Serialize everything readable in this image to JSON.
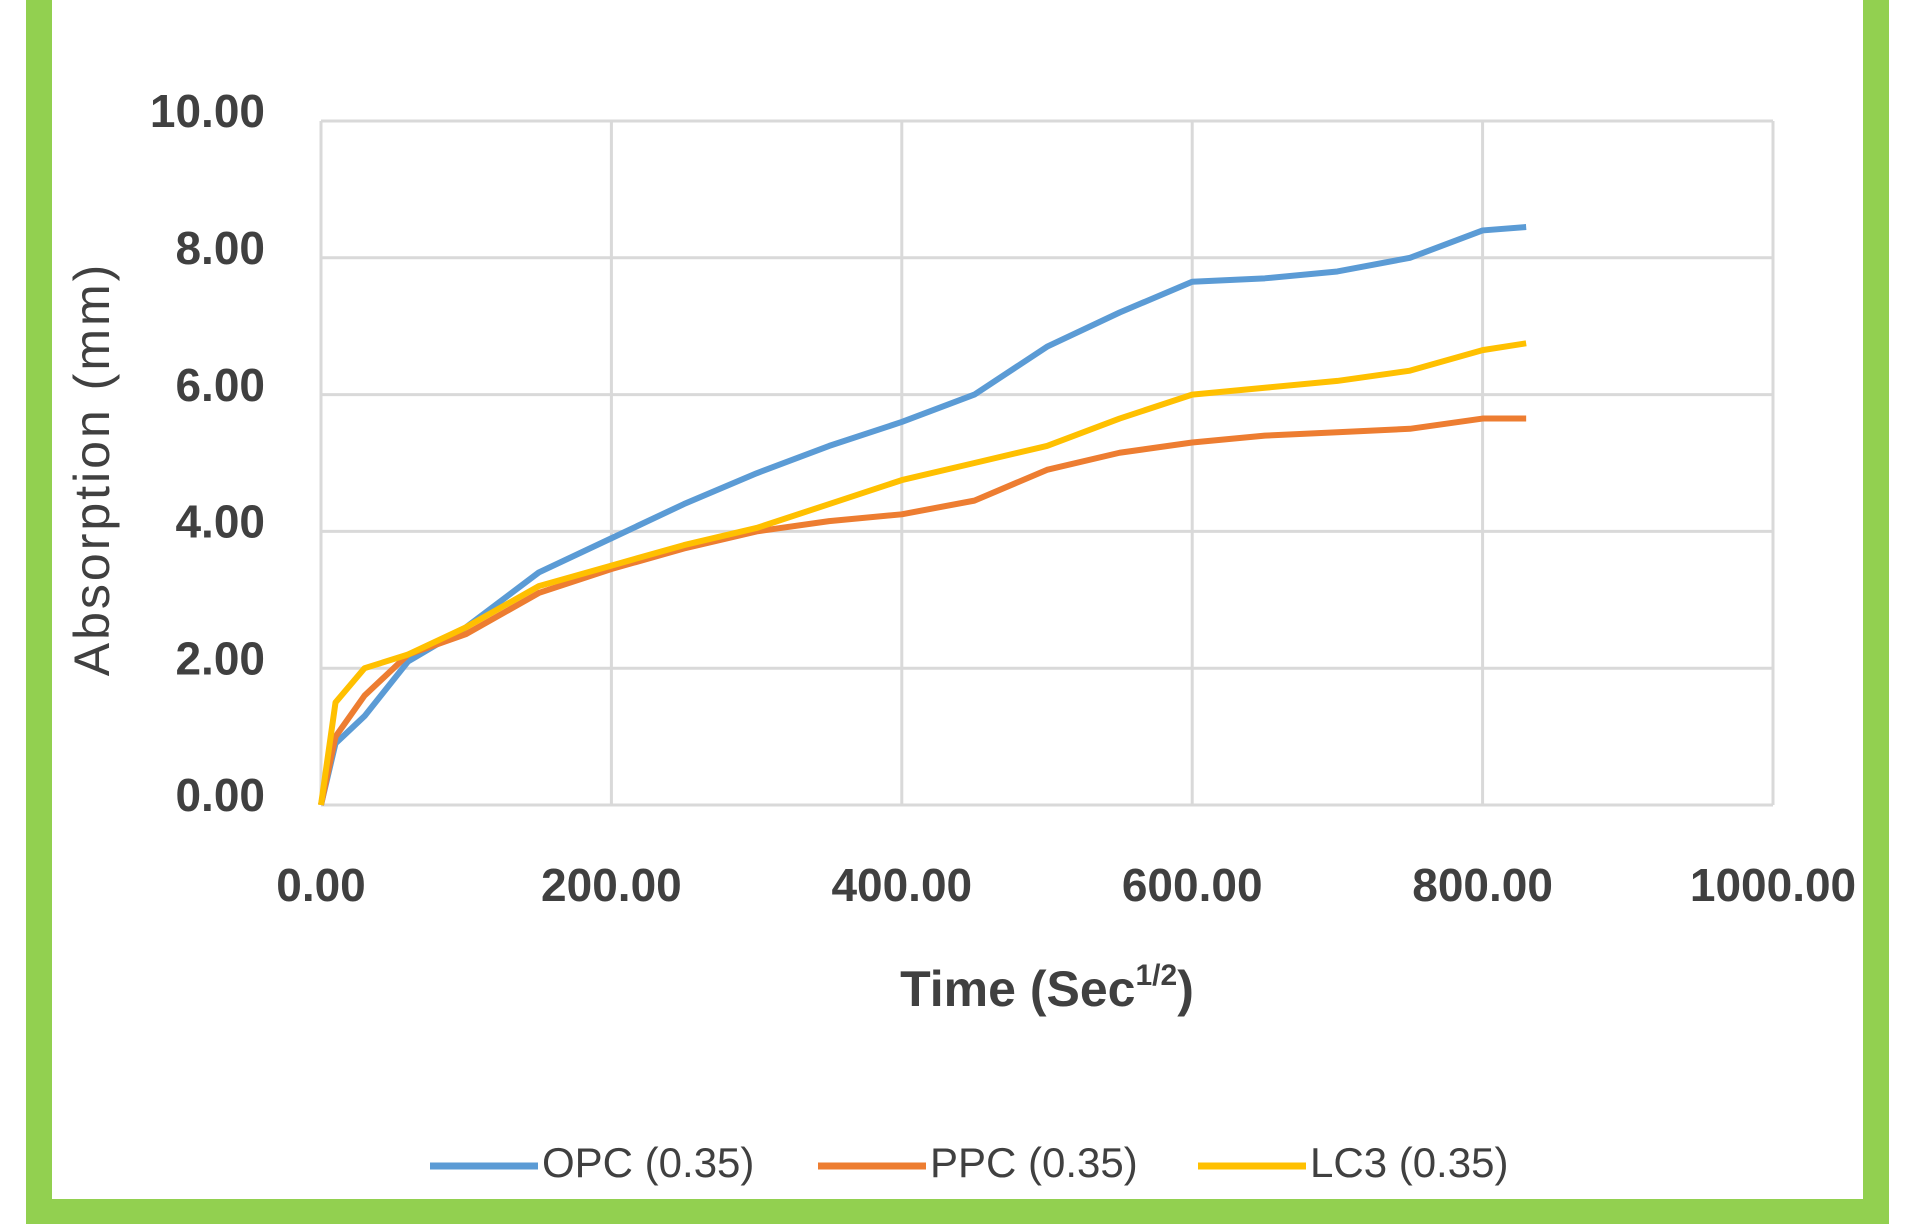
{
  "chart_data": {
    "type": "line",
    "y_label": "Absorption (mm)",
    "x_label": [
      "Time (Sec",
      "1/2",
      ")"
    ],
    "x": [
      0,
      10,
      30,
      60,
      100,
      150,
      200,
      250,
      300,
      350,
      400,
      450,
      500,
      550,
      600,
      650,
      700,
      750,
      800,
      830
    ],
    "series": [
      {
        "name": "OPC (0.35)",
        "color": "#5b9bd5",
        "values": [
          0,
          0.9,
          1.3,
          2.1,
          2.6,
          3.4,
          3.9,
          4.4,
          4.85,
          5.25,
          5.6,
          6.0,
          6.7,
          7.2,
          7.65,
          7.7,
          7.8,
          8.0,
          8.4,
          8.45
        ]
      },
      {
        "name": "PPC (0.35)",
        "color": "#ed7d31",
        "values": [
          0,
          1.0,
          1.6,
          2.2,
          2.5,
          3.1,
          3.45,
          3.75,
          4.0,
          4.15,
          4.25,
          4.45,
          4.9,
          5.15,
          5.3,
          5.4,
          5.45,
          5.5,
          5.65,
          5.65
        ]
      },
      {
        "name": "LC3 (0.35)",
        "color": "#ffc000",
        "values": [
          0,
          1.5,
          2.0,
          2.2,
          2.6,
          3.2,
          3.5,
          3.8,
          4.05,
          4.4,
          4.75,
          5.0,
          5.25,
          5.65,
          6.0,
          6.1,
          6.2,
          6.35,
          6.65,
          6.75
        ]
      }
    ],
    "xlim": [
      0,
      1000
    ],
    "xticks": [
      {
        "value": 0,
        "label": "0.00"
      },
      {
        "value": 200,
        "label": "200.00"
      },
      {
        "value": 400,
        "label": "400.00"
      },
      {
        "value": 600,
        "label": "600.00"
      },
      {
        "value": 800,
        "label": "800.00"
      },
      {
        "value": 1000,
        "label": "1000.00"
      }
    ],
    "ylim": [
      0,
      10
    ],
    "yticks": [
      {
        "value": 0,
        "label": "0.00"
      },
      {
        "value": 2,
        "label": "2.00"
      },
      {
        "value": 4,
        "label": "4.00"
      },
      {
        "value": 6,
        "label": "6.00"
      },
      {
        "value": 8,
        "label": "8.00"
      },
      {
        "value": 10,
        "label": "10.00"
      }
    ],
    "grid": true,
    "legend": "bottom"
  }
}
